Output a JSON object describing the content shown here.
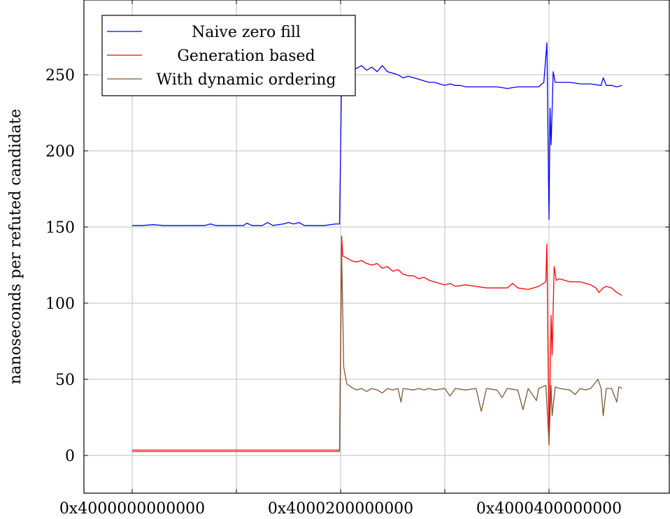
{
  "chart_data": {
    "type": "line",
    "title": "",
    "xlabel": "",
    "ylabel": "nanoseconds per refuted candidate",
    "xlim": [
      0,
      5.25
    ],
    "ylim": [
      -25,
      300
    ],
    "grid": true,
    "legend_position": "top-left",
    "x_ticks": [
      {
        "value": 0,
        "label": "0x4000000000000"
      },
      {
        "value": 1,
        "label": ""
      },
      {
        "value": 2,
        "label": "0x4000200000000"
      },
      {
        "value": 3,
        "label": ""
      },
      {
        "value": 4,
        "label": "0x4000400000000"
      }
    ],
    "y_ticks": [
      {
        "value": 0,
        "label": "0"
      },
      {
        "value": 50,
        "label": "50"
      },
      {
        "value": 100,
        "label": "100"
      },
      {
        "value": 150,
        "label": "150"
      },
      {
        "value": 200,
        "label": "200"
      },
      {
        "value": 250,
        "label": "250"
      }
    ],
    "x_unit_note": "x values in units of 0x100000000 offset from 0x4000000000000",
    "series": [
      {
        "name": "Naive zero fill",
        "color": "#0000ff",
        "points": [
          [
            0.0,
            151
          ],
          [
            0.1,
            151
          ],
          [
            0.2,
            151.5
          ],
          [
            0.3,
            151
          ],
          [
            0.4,
            151
          ],
          [
            0.5,
            151
          ],
          [
            0.6,
            151
          ],
          [
            0.7,
            151
          ],
          [
            0.75,
            152
          ],
          [
            0.8,
            151
          ],
          [
            0.9,
            151
          ],
          [
            1.0,
            151
          ],
          [
            1.07,
            151
          ],
          [
            1.1,
            152.5
          ],
          [
            1.15,
            151
          ],
          [
            1.25,
            151
          ],
          [
            1.3,
            153
          ],
          [
            1.35,
            151
          ],
          [
            1.45,
            152
          ],
          [
            1.5,
            153
          ],
          [
            1.55,
            152
          ],
          [
            1.6,
            153
          ],
          [
            1.65,
            151
          ],
          [
            1.75,
            151
          ],
          [
            1.85,
            151
          ],
          [
            1.95,
            152
          ],
          [
            1.99,
            152
          ],
          [
            2.01,
            250
          ],
          [
            2.05,
            253
          ],
          [
            2.1,
            255
          ],
          [
            2.15,
            254
          ],
          [
            2.2,
            256
          ],
          [
            2.25,
            253
          ],
          [
            2.3,
            255
          ],
          [
            2.35,
            252
          ],
          [
            2.4,
            256
          ],
          [
            2.45,
            252
          ],
          [
            2.5,
            251
          ],
          [
            2.55,
            250
          ],
          [
            2.6,
            248
          ],
          [
            2.65,
            249
          ],
          [
            2.7,
            248
          ],
          [
            2.75,
            247
          ],
          [
            2.8,
            246
          ],
          [
            2.85,
            245
          ],
          [
            2.9,
            245
          ],
          [
            2.95,
            244
          ],
          [
            3.0,
            243
          ],
          [
            3.05,
            244
          ],
          [
            3.1,
            243
          ],
          [
            3.15,
            243
          ],
          [
            3.2,
            242
          ],
          [
            3.3,
            242
          ],
          [
            3.4,
            242
          ],
          [
            3.5,
            242
          ],
          [
            3.6,
            241
          ],
          [
            3.7,
            242
          ],
          [
            3.8,
            242
          ],
          [
            3.9,
            242
          ],
          [
            3.95,
            245
          ],
          [
            3.98,
            271
          ],
          [
            4.0,
            155
          ],
          [
            4.01,
            228
          ],
          [
            4.02,
            204
          ],
          [
            4.04,
            252
          ],
          [
            4.06,
            245
          ],
          [
            4.1,
            245
          ],
          [
            4.2,
            245
          ],
          [
            4.3,
            244
          ],
          [
            4.4,
            244
          ],
          [
            4.5,
            243
          ],
          [
            4.52,
            248
          ],
          [
            4.55,
            243
          ],
          [
            4.6,
            243
          ],
          [
            4.65,
            242
          ],
          [
            4.7,
            243
          ]
        ]
      },
      {
        "name": "Generation based",
        "color": "#ff0000",
        "points": [
          [
            0.0,
            3.5
          ],
          [
            0.5,
            3.5
          ],
          [
            1.0,
            3.5
          ],
          [
            1.5,
            3.5
          ],
          [
            1.99,
            3.5
          ],
          [
            2.01,
            144
          ],
          [
            2.02,
            131
          ],
          [
            2.05,
            130
          ],
          [
            2.1,
            128
          ],
          [
            2.15,
            127
          ],
          [
            2.2,
            128
          ],
          [
            2.25,
            126
          ],
          [
            2.3,
            125
          ],
          [
            2.35,
            126
          ],
          [
            2.4,
            123
          ],
          [
            2.45,
            124
          ],
          [
            2.5,
            121
          ],
          [
            2.55,
            122
          ],
          [
            2.6,
            119
          ],
          [
            2.65,
            118
          ],
          [
            2.7,
            118
          ],
          [
            2.75,
            116
          ],
          [
            2.8,
            117
          ],
          [
            2.85,
            115
          ],
          [
            2.9,
            114
          ],
          [
            2.95,
            113
          ],
          [
            3.0,
            112
          ],
          [
            3.05,
            113
          ],
          [
            3.1,
            111
          ],
          [
            3.2,
            112
          ],
          [
            3.3,
            111
          ],
          [
            3.4,
            110
          ],
          [
            3.5,
            110
          ],
          [
            3.6,
            110
          ],
          [
            3.65,
            113
          ],
          [
            3.7,
            110
          ],
          [
            3.8,
            109
          ],
          [
            3.9,
            111
          ],
          [
            3.97,
            114
          ],
          [
            3.98,
            139
          ],
          [
            4.0,
            7
          ],
          [
            4.02,
            92
          ],
          [
            4.03,
            66
          ],
          [
            4.05,
            124
          ],
          [
            4.07,
            115
          ],
          [
            4.1,
            116
          ],
          [
            4.2,
            114
          ],
          [
            4.3,
            114
          ],
          [
            4.4,
            112
          ],
          [
            4.45,
            110
          ],
          [
            4.48,
            107
          ],
          [
            4.52,
            110
          ],
          [
            4.55,
            111
          ],
          [
            4.6,
            110
          ],
          [
            4.65,
            107
          ],
          [
            4.7,
            105
          ]
        ]
      },
      {
        "name": "With dynamic ordering",
        "color": "#7f5833",
        "points": [
          [
            0.0,
            2.5
          ],
          [
            0.5,
            2.5
          ],
          [
            1.0,
            2.5
          ],
          [
            1.5,
            2.5
          ],
          [
            1.99,
            2.5
          ],
          [
            2.01,
            133
          ],
          [
            2.03,
            58
          ],
          [
            2.06,
            47
          ],
          [
            2.1,
            45
          ],
          [
            2.15,
            43
          ],
          [
            2.2,
            44
          ],
          [
            2.25,
            42
          ],
          [
            2.3,
            44
          ],
          [
            2.35,
            43
          ],
          [
            2.4,
            41
          ],
          [
            2.45,
            44
          ],
          [
            2.5,
            43
          ],
          [
            2.55,
            44
          ],
          [
            2.58,
            35
          ],
          [
            2.6,
            44
          ],
          [
            2.7,
            43
          ],
          [
            2.75,
            44
          ],
          [
            2.8,
            43
          ],
          [
            2.85,
            44
          ],
          [
            2.9,
            43
          ],
          [
            3.0,
            44
          ],
          [
            3.05,
            39
          ],
          [
            3.1,
            44
          ],
          [
            3.2,
            43
          ],
          [
            3.3,
            44
          ],
          [
            3.35,
            29
          ],
          [
            3.4,
            44
          ],
          [
            3.5,
            43
          ],
          [
            3.55,
            38
          ],
          [
            3.6,
            44
          ],
          [
            3.7,
            43
          ],
          [
            3.75,
            30
          ],
          [
            3.8,
            44
          ],
          [
            3.88,
            36
          ],
          [
            3.9,
            44
          ],
          [
            3.97,
            46
          ],
          [
            4.0,
            8
          ],
          [
            4.02,
            46
          ],
          [
            4.03,
            26
          ],
          [
            4.06,
            45
          ],
          [
            4.1,
            44
          ],
          [
            4.2,
            43
          ],
          [
            4.25,
            40
          ],
          [
            4.3,
            44
          ],
          [
            4.35,
            43
          ],
          [
            4.4,
            44
          ],
          [
            4.47,
            50
          ],
          [
            4.5,
            44
          ],
          [
            4.52,
            26
          ],
          [
            4.55,
            44
          ],
          [
            4.6,
            44
          ],
          [
            4.65,
            35
          ],
          [
            4.67,
            45
          ],
          [
            4.7,
            44
          ]
        ]
      }
    ]
  }
}
